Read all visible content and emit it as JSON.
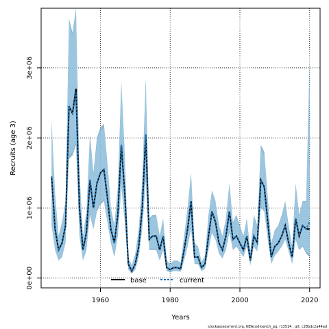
{
  "chart_data": {
    "type": "line",
    "xlabel": "Years",
    "ylabel": "Recruits (age 3)",
    "xlim": [
      1943,
      2023
    ],
    "ylim": [
      -140000,
      3850000
    ],
    "x_ticks": [
      1960,
      1980,
      2000,
      2020
    ],
    "x_tick_labels": [
      "1960",
      "1980",
      "2000",
      "2020"
    ],
    "y_ticks": [
      0,
      1000000,
      2000000,
      3000000
    ],
    "y_tick_labels": [
      "0e+00",
      "1e+06",
      "2e+06",
      "3e+06"
    ],
    "grid": true,
    "legend_position": "bottom-center",
    "colors": {
      "base_line": "#000000",
      "current_line": "#1f6fae",
      "base_band": "#6aa0bd",
      "current_band": "#a8d2ee"
    },
    "x": [
      1946,
      1947,
      1948,
      1949,
      1950,
      1951,
      1952,
      1953,
      1954,
      1955,
      1956,
      1957,
      1958,
      1959,
      1960,
      1961,
      1962,
      1963,
      1964,
      1965,
      1966,
      1967,
      1968,
      1969,
      1970,
      1971,
      1972,
      1973,
      1974,
      1975,
      1976,
      1977,
      1978,
      1979,
      1980,
      1981,
      1982,
      1983,
      1984,
      1985,
      1986,
      1987,
      1988,
      1989,
      1990,
      1991,
      1992,
      1993,
      1994,
      1995,
      1996,
      1997,
      1998,
      1999,
      2000,
      2001,
      2002,
      2003,
      2004,
      2005,
      2006,
      2007,
      2008,
      2009,
      2010,
      2011,
      2012,
      2013,
      2014,
      2015,
      2016,
      2017,
      2018,
      2019,
      2020
    ],
    "series": [
      {
        "name": "base",
        "values": [
          1450000,
          700000,
          400000,
          500000,
          750000,
          2450000,
          2350000,
          2700000,
          1000000,
          400000,
          650000,
          1400000,
          1000000,
          1350000,
          1500000,
          1550000,
          1150000,
          700000,
          500000,
          900000,
          1900000,
          1200000,
          200000,
          100000,
          200000,
          450000,
          1000000,
          2050000,
          550000,
          600000,
          600000,
          400000,
          600000,
          150000,
          120000,
          150000,
          150000,
          130000,
          400000,
          700000,
          1100000,
          300000,
          300000,
          150000,
          200000,
          600000,
          950000,
          800000,
          500000,
          400000,
          600000,
          950000,
          550000,
          600000,
          500000,
          400000,
          600000,
          250000,
          600000,
          500000,
          1400000,
          1300000,
          800000,
          300000,
          450000,
          500000,
          600000,
          750000,
          500000,
          300000,
          850000,
          600000,
          750000,
          700000,
          700000
        ],
        "lower": [
          750000,
          400000,
          250000,
          300000,
          500000,
          1700000,
          1750000,
          1900000,
          600000,
          250000,
          400000,
          900000,
          700000,
          950000,
          1050000,
          1100000,
          800000,
          500000,
          300000,
          600000,
          1300000,
          800000,
          120000,
          60000,
          120000,
          300000,
          700000,
          1400000,
          400000,
          400000,
          400000,
          250000,
          400000,
          100000,
          80000,
          100000,
          100000,
          90000,
          250000,
          450000,
          700000,
          200000,
          200000,
          100000,
          130000,
          400000,
          650000,
          550000,
          350000,
          280000,
          400000,
          650000,
          400000,
          450000,
          380000,
          300000,
          450000,
          180000,
          450000,
          380000,
          1000000,
          950000,
          550000,
          200000,
          320000,
          380000,
          450000,
          550000,
          380000,
          200000,
          550000,
          400000,
          450000,
          350000,
          300000
        ],
        "upper": [
          2250000,
          1200000,
          600000,
          800000,
          1100000,
          3700000,
          3500000,
          3850000,
          1500000,
          600000,
          950000,
          2050000,
          1500000,
          2000000,
          2150000,
          2200000,
          1650000,
          1000000,
          750000,
          1300000,
          2800000,
          1750000,
          300000,
          180000,
          350000,
          700000,
          1400000,
          2850000,
          850000,
          900000,
          900000,
          600000,
          850000,
          250000,
          200000,
          250000,
          250000,
          220000,
          600000,
          1000000,
          1500000,
          500000,
          450000,
          230000,
          320000,
          900000,
          1250000,
          1100000,
          750000,
          600000,
          850000,
          1350000,
          800000,
          900000,
          750000,
          600000,
          850000,
          380000,
          900000,
          750000,
          1900000,
          1800000,
          1150000,
          500000,
          680000,
          750000,
          900000,
          1100000,
          750000,
          450000,
          1350000,
          900000,
          1100000,
          1100000,
          3100000
        ]
      },
      {
        "name": "current",
        "values": [
          1450000,
          700000,
          400000,
          500000,
          750000,
          2450000,
          2350000,
          2650000,
          1000000,
          400000,
          650000,
          1400000,
          1000000,
          1350000,
          1500000,
          1550000,
          1150000,
          700000,
          500000,
          900000,
          1900000,
          1200000,
          200000,
          100000,
          200000,
          450000,
          1000000,
          2050000,
          550000,
          600000,
          600000,
          400000,
          600000,
          150000,
          120000,
          150000,
          150000,
          130000,
          400000,
          700000,
          1100000,
          300000,
          300000,
          150000,
          200000,
          600000,
          950000,
          800000,
          500000,
          400000,
          600000,
          950000,
          550000,
          600000,
          500000,
          400000,
          600000,
          250000,
          600000,
          500000,
          1400000,
          1300000,
          800000,
          300000,
          450000,
          500000,
          600000,
          750000,
          500000,
          300000,
          850000,
          600000,
          750000,
          700000,
          800000
        ],
        "lower": [
          780000,
          420000,
          260000,
          320000,
          520000,
          1750000,
          1800000,
          1950000,
          620000,
          260000,
          420000,
          920000,
          720000,
          980000,
          1080000,
          1120000,
          820000,
          520000,
          320000,
          620000,
          1320000,
          820000,
          130000,
          65000,
          130000,
          310000,
          720000,
          1420000,
          420000,
          420000,
          420000,
          260000,
          420000,
          110000,
          85000,
          105000,
          105000,
          95000,
          260000,
          470000,
          720000,
          210000,
          210000,
          110000,
          140000,
          420000,
          670000,
          570000,
          360000,
          290000,
          420000,
          670000,
          410000,
          460000,
          390000,
          310000,
          460000,
          190000,
          460000,
          390000,
          1020000,
          970000,
          570000,
          210000,
          330000,
          390000,
          460000,
          560000,
          390000,
          210000,
          560000,
          420000,
          470000,
          370000,
          350000
        ],
        "upper": [
          2200000,
          1150000,
          580000,
          780000,
          1080000,
          3650000,
          3450000,
          3800000,
          1450000,
          580000,
          920000,
          2000000,
          1450000,
          1950000,
          2100000,
          2150000,
          1600000,
          980000,
          730000,
          1270000,
          2750000,
          1700000,
          290000,
          170000,
          340000,
          680000,
          1370000,
          2800000,
          830000,
          880000,
          880000,
          580000,
          830000,
          240000,
          190000,
          240000,
          240000,
          210000,
          590000,
          980000,
          1470000,
          490000,
          440000,
          220000,
          310000,
          880000,
          1220000,
          1080000,
          730000,
          580000,
          830000,
          1320000,
          780000,
          880000,
          730000,
          580000,
          830000,
          370000,
          880000,
          730000,
          1850000,
          1750000,
          1120000,
          490000,
          660000,
          730000,
          880000,
          1080000,
          730000,
          440000,
          1320000,
          880000,
          1080000,
          1080000,
          3250000
        ]
      }
    ]
  },
  "legend": {
    "items": [
      {
        "label": "base",
        "style": "solid"
      },
      {
        "label": "current",
        "style": "dashed"
      }
    ]
  },
  "footer": "stockassessment.org, NEAcod-bench_pg, r13514 ,  git: c28bdc2a44ad"
}
